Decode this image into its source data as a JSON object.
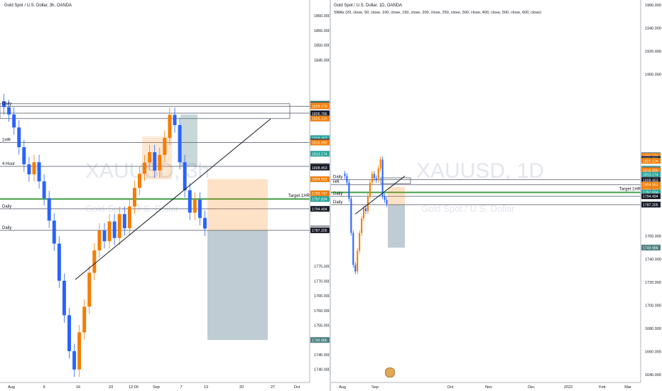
{
  "left": {
    "title": "Gold Spot / U.S. Dollar, 3h, OANDA",
    "watermark_symbol": "XAUUSD, 3h",
    "watermark_name": "Gold Spot / U.S. Dollar",
    "x_ticks": [
      "Aug",
      "9",
      "16",
      "23",
      "12:00",
      "Sep",
      "7",
      "13",
      "20",
      "27",
      "Oct"
    ],
    "y_ticks": [
      "1860.000",
      "1855.000",
      "1850.000",
      "1845.000",
      "1775.000",
      "1770.000",
      "1765.000",
      "1760.000",
      "1755.000",
      "1745.000",
      "1740.000"
    ],
    "line_labels": [
      "Daily",
      "1HR",
      "4 Hour",
      "Daily",
      "Daily"
    ],
    "target_label": "Target 1HR"
  },
  "right": {
    "title": "Gold Spot / U.S. Dollar, 1D, OANDA",
    "sma_text": "SMAs (20, close, 50, close, 100, close, 150, close, 200, close, 250, close, 300, close, 400, close, 500, close, 600, close)",
    "watermark_symbol": "XAUUSD, 1D",
    "watermark_name": "Gold Spot / U.S. Dollar",
    "x_ticks": [
      "Aug",
      "Sep",
      "Oct",
      "Nov",
      "Dec",
      "2022",
      "Feb",
      "Mar"
    ],
    "y_ticks": [
      "1960.000",
      "1940.000",
      "1920.000",
      "1900.000",
      "1760.000",
      "1740.000",
      "1720.000",
      "1700.000",
      "1680.000",
      "1660.000",
      "1640.000"
    ],
    "line_labels": [
      "Daily",
      "HR",
      "Daily",
      "Daily"
    ],
    "target_label": "Target 1HR"
  },
  "price_tags": [
    {
      "value": "1830.171",
      "color": "#26a69a"
    },
    {
      "value": "1829.879",
      "color": "#131722"
    },
    {
      "value": "1829.584",
      "color": "#f57c00"
    },
    {
      "value": "1829.279",
      "color": "#f57c00"
    },
    {
      "value": "1826.968",
      "color": "#131722"
    },
    {
      "value": "1826.786",
      "color": "#131722"
    },
    {
      "value": "1825.126",
      "color": "#f57c00"
    },
    {
      "value": "1818.463",
      "color": "#26a69a"
    },
    {
      "value": "1817.340",
      "color": "#131722"
    },
    {
      "value": "1816.990",
      "color": "#f57c00"
    },
    {
      "value": "1813.174",
      "color": "#26a69a"
    },
    {
      "value": "1808.911",
      "color": "#131722"
    },
    {
      "value": "1808.453",
      "color": "#131722"
    },
    {
      "value": "1804.553",
      "color": "#f57c00"
    },
    {
      "value": "1799.747",
      "color": "#f57c00"
    },
    {
      "value": "1797.834",
      "color": "#26a69a"
    },
    {
      "value": "1794.494",
      "color": "#131722"
    },
    {
      "value": "1787.793",
      "color": "#131722"
    },
    {
      "value": "1787.550",
      "color": "#ffffff"
    },
    {
      "value": "1787.205",
      "color": "#131722"
    },
    {
      "value": "1749.986",
      "color": "#4a7f80"
    }
  ],
  "chart_data": [
    {
      "type": "candlestick",
      "title": "Gold Spot / U.S. Dollar, 3h, OANDA",
      "x_range": [
        "Aug",
        "Oct"
      ],
      "ylim": [
        1738,
        1861
      ],
      "horizontal_levels": [
        1829.279,
        1826.968,
        1816.99,
        1808.911,
        1797.834,
        1794.494,
        1787.205
      ],
      "target_level": 1797.834,
      "stop_level": 1749.986,
      "close_series": [
        1829.0,
        1826.5,
        1822.1,
        1815.4,
        1809.6,
        1806.2,
        1810.3,
        1803.8,
        1798.1,
        1790.5,
        1782.7,
        1770.1,
        1758.4,
        1746.2,
        1740.0,
        1752.6,
        1761.3,
        1772.8,
        1780.4,
        1787.1,
        1783.5,
        1790.2,
        1784.6,
        1792.7,
        1787.9,
        1795.3,
        1801.6,
        1806.4,
        1810.2,
        1813.7,
        1807.5,
        1812.8,
        1818.6,
        1826.4,
        1822.9,
        1810.3,
        1800.8,
        1793.2,
        1797.6,
        1791.4,
        1787.8
      ]
    },
    {
      "type": "candlestick",
      "title": "Gold Spot / U.S. Dollar, 1D, OANDA",
      "x_range": [
        "Aug",
        "Mar"
      ],
      "ylim": [
        1632,
        1962
      ],
      "horizontal_levels": [
        1808.911,
        1804.553,
        1797.834,
        1794.494,
        1787.205
      ],
      "target_level": 1797.834,
      "stop_level": 1749.986,
      "close_series": [
        1812.0,
        1806.5,
        1792.3,
        1762.8,
        1735.1,
        1729.4,
        1747.3,
        1762.6,
        1775.4,
        1784.2,
        1781.6,
        1794.7,
        1806.3,
        1813.9,
        1810.1,
        1808.4,
        1818.6,
        1826.2,
        1794.5,
        1791.3,
        1787.8
      ]
    }
  ]
}
